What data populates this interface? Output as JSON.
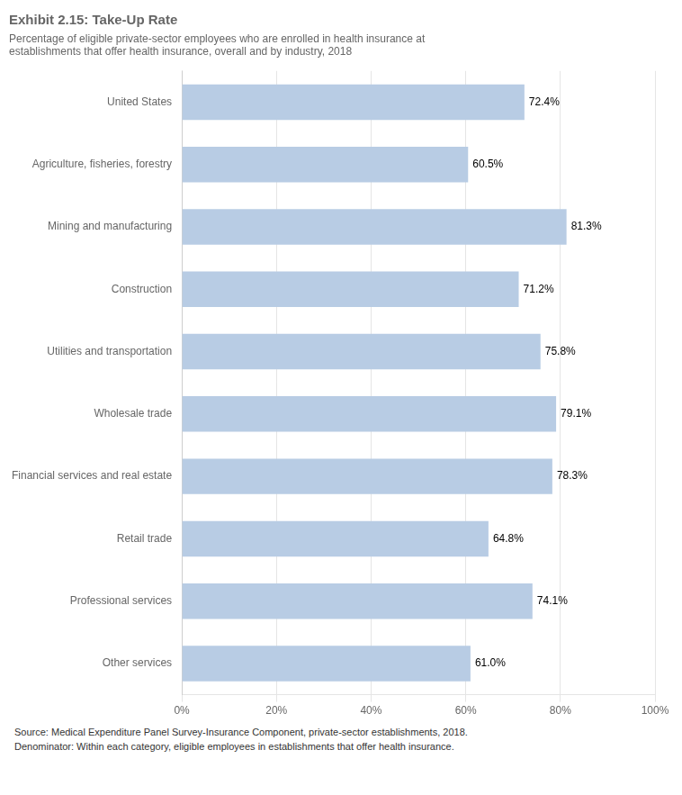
{
  "chart_data": {
    "type": "bar",
    "orientation": "horizontal",
    "title": "Exhibit 2.15: Take-Up Rate",
    "subtitle": "Percentage of eligible private-sector employees who are enrolled in health insurance at\nestablishments that offer health insurance, overall and by industry, 2018",
    "categories": [
      "Other services",
      "Professional services",
      "Retail trade",
      "Financial services and real estate",
      "Wholesale trade",
      "Utilities and transportation",
      "Construction",
      "Mining and manufacturing",
      "Agriculture, fisheries, forestry",
      "United States"
    ],
    "values": [
      61.0,
      74.1,
      64.8,
      78.3,
      79.1,
      75.8,
      71.2,
      81.3,
      60.5,
      72.4
    ],
    "value_labels": [
      "61.0%",
      "74.1%",
      "64.8%",
      "78.3%",
      "79.1%",
      "75.8%",
      "71.2%",
      "81.3%",
      "60.5%",
      "72.4%"
    ],
    "data_labels": true,
    "color": "#b8cce4",
    "xlim": [
      0,
      100
    ],
    "xticks": [
      {
        "value": 0,
        "label": "0%"
      },
      {
        "value": 20,
        "label": "20%"
      },
      {
        "value": 40,
        "label": "40%"
      },
      {
        "value": 60,
        "label": "60%"
      },
      {
        "value": 80,
        "label": "80%"
      },
      {
        "value": 100,
        "label": "100%"
      }
    ],
    "grid": "x",
    "annotations": [
      "Source: Medical Expenditure Panel Survey-Insurance Component, private-sector establishments, 2018.",
      "Denominator: Within each category, eligible employees in establishments that offer health insurance."
    ]
  }
}
